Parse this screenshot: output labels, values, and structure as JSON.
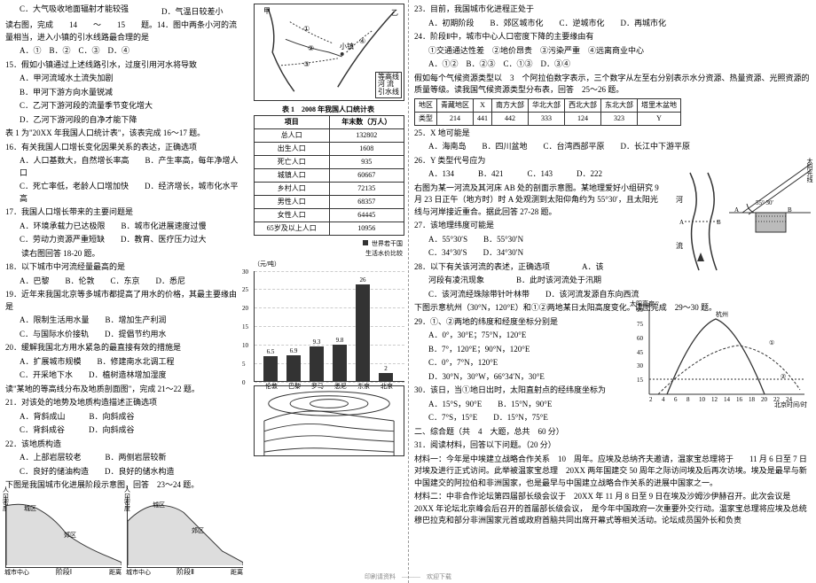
{
  "left": {
    "q_c": "C．大气吸收地面辐射才能较强",
    "q_d": "D．气温日较差小",
    "read_map": "读右图，完成　　14　　～　　15　　题。14．图中两条小河的流量相当，进入小镇的引水线路最合理的是",
    "opt14": "A．①　B．②　C．③　D．④",
    "q15": "15．假如小镇通过上述线路引水，过度引用河水将导致",
    "q15a": "A．甲河流域水土流失加剧",
    "q15b": "B．甲河下游方向水量锐减",
    "q15c": "C．乙河下游河段的流量季节变化增大",
    "q15d": "D．乙河下游河段的自净才能下降",
    "tab_caption_ref": "表 1 为\"20XX 年我国人口统计表\"，该表完成 16～17 题。",
    "q16": "16．有关我国人口增长变化因果关系的表达，正确选项",
    "q16a": "A．人口基数大，自然增长率高　　B．产生率高，每年净增人口",
    "q16b": "C．死亡率低，老龄人口增加快　　D．经济增长，城市化水平高",
    "q17": "17．我国人口增长带来的主要问题是",
    "q17a": "A．环境承载力已达极限　　B．城市化进展速度过慢",
    "q17b": "C．劳动力资源严重短缺　　D．教育、医疗压力过大",
    "read18": "　　读右图回答 18-20 题。",
    "q18": "18．以下城市中河流经量最高的是",
    "q18opt": "A．巴黎　　B．伦敦　　C．东京　　D．悉尼",
    "q19": "19．近年来我国北京等多城市都提高了用水的价格，其最主要缘由是",
    "q19a": "A．限制生活用水量　　B．增加生产利润",
    "q19b": "C．与国际水价接轨　　D．提倡节约用水",
    "q20": "20．缓解我国北方用水紧急的最直接有效的措施是",
    "q20a": "A．扩展城市规模　　B．修建南水北调工程",
    "q20b": "C．开采地下水　　D．植树造林增加湿度",
    "read_strata": "读\"某地的等高线分布及地质剖面图\"，完成 21～22 题。",
    "q21": "21．对该处的地势及地质构造描述正确选项",
    "q21a": "A．背斜成山　　　B．向斜成谷",
    "q21b": "C．背斜成谷　　　D．向斜成谷",
    "q22": "22．该地质构造",
    "q22a": "A．上部岩层较老　　　B．两侧岩层较新",
    "q22b": "C．良好的储油构造　　D．良好的储水构造",
    "density_intro": "下图是我国城市化进展阶段示意图，回答　23～24 题。",
    "density_ylab": "人口密度",
    "density_zone1": "城区",
    "density_zone2": "郊区",
    "density_xl": "城市中心",
    "density_xr": "距离",
    "density_p1": "阶段Ⅰ",
    "density_p2": "阶段Ⅱ"
  },
  "map": {
    "jia": "甲",
    "yi": "乙",
    "town": "小镇",
    "legend1": "等高线",
    "legend2": "河 流",
    "legend3": "引水线",
    "nums": [
      "①",
      "②",
      "③",
      "④"
    ]
  },
  "stats": {
    "title": "表 1　2008 年我国人口统计表",
    "h1": "项目",
    "h2": "年末数（万人）",
    "rows": [
      [
        "总人口",
        "132802"
      ],
      [
        "出生人口",
        "1608"
      ],
      [
        "死亡人口",
        "935"
      ],
      [
        "城镇人口",
        "60667"
      ],
      [
        "乡村人口",
        "72135"
      ],
      [
        "男性人口",
        "68357"
      ],
      [
        "女性人口",
        "64445"
      ],
      [
        "65岁及以上人口",
        "10956"
      ]
    ],
    "side": "其中"
  },
  "bar": {
    "title_l1": "世界若干国",
    "title_l2": "生活水价比较",
    "unit": "（元/吨）",
    "yticks": [
      0,
      5,
      10,
      15,
      20,
      25,
      30
    ],
    "bars": [
      {
        "label": "伦敦",
        "v": 6.5
      },
      {
        "label": "巴黎",
        "v": 6.9
      },
      {
        "label": "罗马",
        "v": 9.3
      },
      {
        "label": "悉尼",
        "v": 9.8
      },
      {
        "label": "东京",
        "v": 26
      },
      {
        "label": "北京",
        "v": 2
      }
    ]
  },
  "right": {
    "q23": "23．目前，我国城市化进程正处于",
    "q23opt": "A．初期阶段　　B．郊区城市化　　C．逆城市化　　D．再城市化",
    "q24": "24．阶段Ⅱ中，城市中心人口密度下降的主要缘由有",
    "q24line": "①交通通达性差　②地价昂贵　③污染严重　④远离商业中心",
    "q24opt": "A．①②　B．②③　C．①③　D．③④",
    "climate_intro": "假如每个气候资源类型以　3　个阿拉伯数字表示，三个数字从左至右分别表示水分资源、热量资源、光照资源的质量等级。读我国气候资源类型分布表，回答　25～26 题。",
    "region_head": [
      "地区",
      "青藏地区",
      "X",
      "南方大部",
      "华北大部",
      "西北大部",
      "东北大部",
      "塔里木盆地"
    ],
    "region_val": [
      "类型",
      "214",
      "441",
      "442",
      "333",
      "124",
      "323",
      "Y"
    ],
    "q25": "25．X 地可能是",
    "q25opt": "A．海南岛　　B．四川盆地　　C．台湾西部平原　　D．长江中下游平原",
    "q26": "26．Y 类型代号应为",
    "q26opt": "A．134　　　B．421　　　C．143　　　D．222",
    "river_intro": "右图为某一河流及其河床 AB 处的剖面示意图。某地理爱好小组研究 9 月 23 日正午（地方时）时 A 处观测到太阳仰角约为 55°30′，且太阳光线与河岸接近重合。据此回答 27-28 题。",
    "q27": "27．该地理纬度可能是",
    "q27a": "A．55°30′S　　B．55°30′N",
    "q27b": "C．34°30′S　　D．34°30′N",
    "q28": "28．以下有关该河流的表述，正确选项　　　　A．该",
    "q28a": "河段有凌汛现象　　　　B．此时该河流处于汛期",
    "q28b": "C．该河流经珠除带针叶林带　　D．该河流发源自东向西流",
    "fig_intro": "下图示意杭州（30°N，120°E）和①②两地某日太阳高度变化。读图完成　29～30 题。",
    "q29": "29．①、②两地的纬度和经度坐标分别是",
    "q29a": "A．0°，30°E；75°N，120°E",
    "q29b": "B．7°，120°E；90°N，120°E",
    "q29c": "C．0°，7°N，120°E",
    "q29d": "D．30°N，30°W，66°34′N，30°E",
    "q30": "30．该日，当①地日出时，太阳直射点的经纬度坐标为",
    "q30a": "A．15°S，90°E　　B．15°N，90°E",
    "q30b": "C．7°S，15°E　　D．15°N，75°E",
    "part2": "二、综合题（共　4　大题，总共　60 分）",
    "q31": "31．阅读材料，回答以下问题。（20 分）",
    "mat1": "材料一：今年是中埃建立战略合作关系　10　周年。应埃及总纳齐夫邀请，温家宝总理将于　　11 月 6 日至 7 日对埃及进行正式访问。此举被温家宝总理　20XX 两年国建交 50 周年之际访问埃及后再次访埃。埃及是最早与新中国建交的阿拉伯和非洲国家，也是最早与中国建立战略合作关系的进展中国家之一。",
    "mat2": "材料二：中非合作论坛第四届部长级会议于　20XX 年 11 月 8 日至 9 日在埃及沙姆沙伊赫召开。此次会议是　20XX 年论坛北京峰会后召开的首届部长级会议，　是今年中国政府一次重要外交行动。温家宝总理将应埃及总统穆巴拉克和部分非洲国家元首或政府首脑共同出席开幕式等相关活动。论坛成员国外长和负责"
  },
  "sun": {
    "A": "A",
    "B": "B",
    "angle": "55° 30′",
    "sunray": "太阳光线",
    "river": "河",
    "flow": "流"
  },
  "alt": {
    "ylab": "太阳高度/°",
    "yticks": [
      15,
      30,
      45,
      60,
      75,
      90
    ],
    "xticks": [
      2,
      4,
      6,
      8,
      10,
      12,
      14,
      16,
      18,
      20,
      22,
      24
    ],
    "xlab": "北京时间/时",
    "ser1": "杭州",
    "ser2": "①",
    "ser3": "②"
  },
  "footer": "印刷请资料　———　欢迎下载"
}
